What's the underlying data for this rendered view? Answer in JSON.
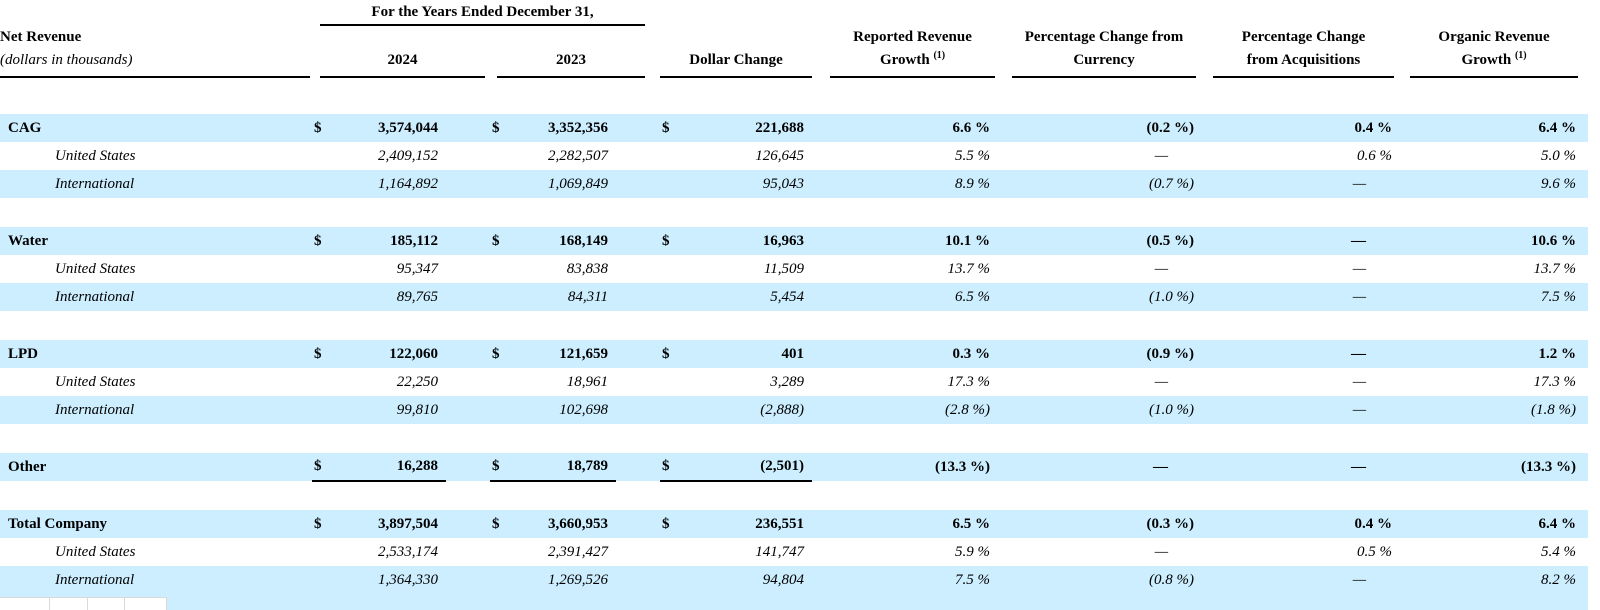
{
  "colors": {
    "highlight": "#cceeff",
    "rule": "#000000",
    "strip_border": "#d9d9d9"
  },
  "header": {
    "years_span": "For the Years Ended December 31,",
    "label_line1": "Net Revenue",
    "label_line2": "(dollars in thousands)",
    "col_2024": "2024",
    "col_2023": "2023",
    "col_dollar_change": "Dollar Change",
    "col_reported_line1": "Reported Revenue",
    "col_reported_line2": "Growth",
    "col_reported_sup": "(1)",
    "col_currency_line1": "Percentage Change from",
    "col_currency_line2": "Currency",
    "col_acquisitions_line1": "Percentage Change",
    "col_acquisitions_line2": "from Acquisitions",
    "col_organic_line1": "Organic Revenue",
    "col_organic_line2": "Growth",
    "col_organic_sup": "(1)"
  },
  "rows": [
    {
      "type": "section",
      "hl": true,
      "u": false,
      "cells": [
        "CAG",
        "$",
        "3,574,044",
        "$",
        "3,352,356",
        "$",
        "221,688",
        "6.6 %",
        "(0.2 %)",
        "0.4 %",
        "6.4 %"
      ]
    },
    {
      "type": "sub",
      "hl": false,
      "u": false,
      "cells": [
        "United States",
        "",
        "2,409,152",
        "",
        "2,282,507",
        "",
        "126,645",
        "5.5 %",
        "—",
        "0.6 %",
        "5.0 %"
      ]
    },
    {
      "type": "sub",
      "hl": true,
      "u": false,
      "cells": [
        "International",
        "",
        "1,164,892",
        "",
        "1,069,849",
        "",
        "95,043",
        "8.9 %",
        "(0.7 %)",
        "—",
        "9.6 %"
      ]
    },
    {
      "type": "gap"
    },
    {
      "type": "section",
      "hl": true,
      "u": false,
      "cells": [
        "Water",
        "$",
        "185,112",
        "$",
        "168,149",
        "$",
        "16,963",
        "10.1 %",
        "(0.5 %)",
        "—",
        "10.6 %"
      ]
    },
    {
      "type": "sub",
      "hl": false,
      "u": false,
      "cells": [
        "United States",
        "",
        "95,347",
        "",
        "83,838",
        "",
        "11,509",
        "13.7 %",
        "—",
        "—",
        "13.7 %"
      ]
    },
    {
      "type": "sub",
      "hl": true,
      "u": false,
      "cells": [
        "International",
        "",
        "89,765",
        "",
        "84,311",
        "",
        "5,454",
        "6.5 %",
        "(1.0 %)",
        "—",
        "7.5 %"
      ]
    },
    {
      "type": "gap"
    },
    {
      "type": "section",
      "hl": true,
      "u": false,
      "cells": [
        "LPD",
        "$",
        "122,060",
        "$",
        "121,659",
        "$",
        "401",
        "0.3 %",
        "(0.9 %)",
        "—",
        "1.2 %"
      ]
    },
    {
      "type": "sub",
      "hl": false,
      "u": false,
      "cells": [
        "United States",
        "",
        "22,250",
        "",
        "18,961",
        "",
        "3,289",
        "17.3 %",
        "—",
        "—",
        "17.3 %"
      ]
    },
    {
      "type": "sub",
      "hl": true,
      "u": false,
      "cells": [
        "International",
        "",
        "99,810",
        "",
        "102,698",
        "",
        "(2,888)",
        "(2.8 %)",
        "(1.0 %)",
        "—",
        "(1.8 %)"
      ]
    },
    {
      "type": "gap"
    },
    {
      "type": "section",
      "hl": true,
      "u": true,
      "cells": [
        "Other",
        "$",
        "16,288",
        "$",
        "18,789",
        "$",
        "(2,501)",
        "(13.3 %)",
        "—",
        "—",
        "(13.3 %)"
      ]
    },
    {
      "type": "gap"
    },
    {
      "type": "section",
      "hl": true,
      "u": false,
      "cells": [
        "Total Company",
        "$",
        "3,897,504",
        "$",
        "3,660,953",
        "$",
        "236,551",
        "6.5 %",
        "(0.3 %)",
        "0.4 %",
        "6.4 %"
      ]
    },
    {
      "type": "sub",
      "hl": false,
      "u": false,
      "cells": [
        "United States",
        "",
        "2,533,174",
        "",
        "2,391,427",
        "",
        "141,747",
        "5.9 %",
        "—",
        "0.5 %",
        "5.4 %"
      ]
    },
    {
      "type": "sub",
      "hl": true,
      "u": false,
      "cells": [
        "International",
        "",
        "1,364,330",
        "",
        "1,269,526",
        "",
        "94,804",
        "7.5 %",
        "(0.8 %)",
        "—",
        "8.2 %"
      ]
    }
  ],
  "cell_names": [
    "row-label",
    "dollar-sign-2024",
    "value-2024",
    "dollar-sign-2023",
    "value-2023",
    "dollar-sign-change",
    "value-dollar-change",
    "pct-reported-growth",
    "pct-change-currency",
    "pct-change-acquisitions",
    "pct-organic-growth"
  ]
}
